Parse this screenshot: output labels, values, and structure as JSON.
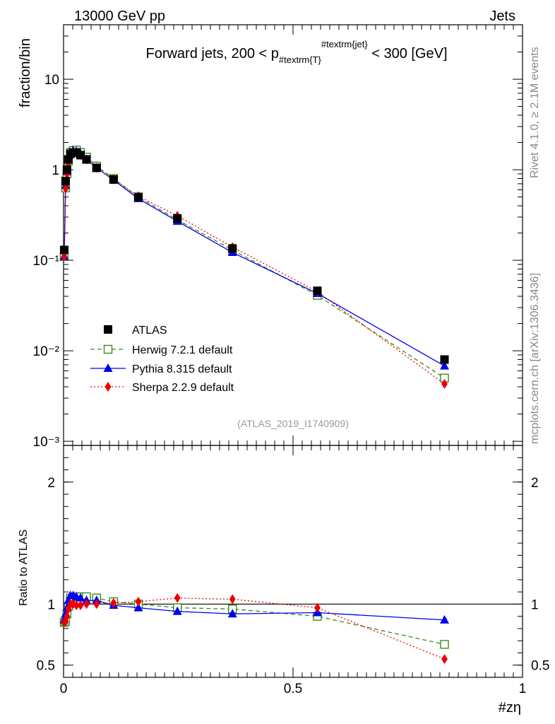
{
  "header": {
    "left": "13000 GeV pp",
    "right": "Jets",
    "rivet": "Rivet 4.1.0, ≥ 2.1M events",
    "mcplots": "mcplots.cern.ch [arXiv:1306.3436]",
    "analysis": "(ATLAS_2019_I1740909)"
  },
  "chart_data": {
    "type": "line",
    "title": "Forward jets, 200 < p_{#textrm{T}}^{#textrm{jet}} < 300 [GeV]",
    "title_parts": {
      "pre": "Forward jets, 200 < p",
      "sub": "#textrm{T}",
      "sup": "#textrm{jet}",
      "post": " < 300 [GeV]"
    },
    "xlabel": "#zη",
    "ylabel_main": "fraction/bin",
    "ylabel_ratio": "Ratio to ATLAS",
    "xlim": [
      0,
      1
    ],
    "ylim_main": [
      0.0009,
      40
    ],
    "ylim_ratio": [
      0.4,
      2.3
    ],
    "yscale_main": "log",
    "x_ticks": [
      "0",
      "0.5",
      "1"
    ],
    "main_y_ticks": [
      "10⁻³",
      "10⁻²",
      "10⁻¹",
      "1",
      "10"
    ],
    "ratio_y_ticks": [
      "0.5",
      "1",
      "2"
    ],
    "legend_position": "bottom-left",
    "x": [
      0.0015,
      0.0045,
      0.0075,
      0.0105,
      0.015,
      0.021,
      0.028,
      0.037,
      0.05,
      0.072,
      0.109,
      0.163,
      0.248,
      0.368,
      0.553,
      0.83
    ],
    "series": [
      {
        "name": "ATLAS",
        "color": "#000000",
        "marker": "square",
        "line": "none",
        "values": [
          0.13,
          0.75,
          1.0,
          1.3,
          1.5,
          1.55,
          1.55,
          1.45,
          1.3,
          1.05,
          0.78,
          0.5,
          0.29,
          0.135,
          0.046,
          0.008
        ],
        "ratio": [
          1,
          1,
          1,
          1,
          1,
          1,
          1,
          1,
          1,
          1,
          1,
          1,
          1,
          1,
          1,
          1
        ]
      },
      {
        "name": "Herwig 7.2.1 default",
        "color": "#3a8c1e",
        "marker": "open-square",
        "line": "dashed",
        "values": [
          0.11,
          0.63,
          0.9,
          1.25,
          1.55,
          1.63,
          1.65,
          1.55,
          1.38,
          1.1,
          0.8,
          0.5,
          0.28,
          0.13,
          0.041,
          0.005
        ],
        "ratio": [
          0.85,
          0.86,
          0.92,
          0.98,
          1.05,
          1.06,
          1.06,
          1.06,
          1.06,
          1.05,
          1.02,
          1.0,
          0.97,
          0.96,
          0.9,
          0.67
        ]
      },
      {
        "name": "Pythia 8.315 default",
        "color": "#0000ee",
        "marker": "triangle",
        "line": "solid",
        "values": [
          0.11,
          0.67,
          0.95,
          1.3,
          1.55,
          1.62,
          1.6,
          1.5,
          1.3,
          1.05,
          0.77,
          0.48,
          0.27,
          0.122,
          0.043,
          0.0068
        ],
        "ratio": [
          0.87,
          0.92,
          0.97,
          1.03,
          1.07,
          1.07,
          1.06,
          1.05,
          1.03,
          1.03,
          0.99,
          0.97,
          0.94,
          0.92,
          0.93,
          0.87
        ]
      },
      {
        "name": "Sherpa 2.2.9 default",
        "color": "#ee0000",
        "marker": "diamond",
        "line": "dotted",
        "values": [
          0.11,
          0.62,
          0.9,
          1.2,
          1.45,
          1.5,
          1.52,
          1.45,
          1.3,
          1.05,
          0.78,
          0.51,
          0.31,
          0.14,
          0.045,
          0.0043
        ],
        "ratio": [
          0.85,
          0.86,
          0.9,
          0.96,
          1.0,
          1.0,
          0.99,
          0.99,
          1.0,
          1.0,
          1.01,
          1.02,
          1.05,
          1.04,
          0.97,
          0.55
        ]
      }
    ]
  }
}
